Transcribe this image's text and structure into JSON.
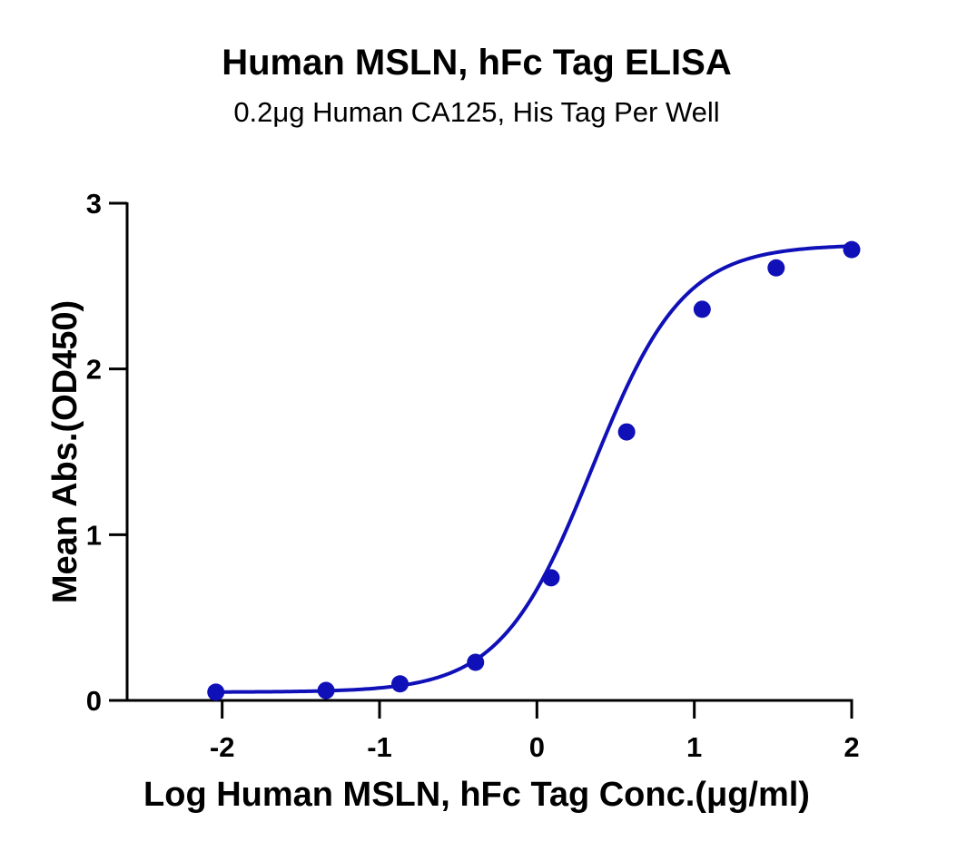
{
  "chart_data": {
    "type": "scatter",
    "title": "Human MSLN, hFc Tag ELISA",
    "subtitle": "0.2μg Human CA125, His Tag Per Well",
    "xlabel": "Log Human MSLN, hFc Tag Conc.(μg/ml)",
    "ylabel": "Mean Abs.(OD450)",
    "xlim": [
      -2.5,
      2
    ],
    "ylim": [
      0,
      3
    ],
    "x_ticks": [
      -2,
      -1,
      0,
      1,
      2
    ],
    "x_tick_labels": [
      "-2",
      "-1",
      "0",
      "1",
      "2"
    ],
    "y_ticks": [
      0,
      1,
      2,
      3
    ],
    "y_tick_labels": [
      "0",
      "1",
      "2",
      "3"
    ],
    "series": [
      {
        "name": "Human MSLN, hFc Tag",
        "color": "#1010B8",
        "x": [
          -2.04,
          -1.34,
          -0.87,
          -0.39,
          0.09,
          0.57,
          1.05,
          1.52,
          2.0
        ],
        "y": [
          0.05,
          0.06,
          0.1,
          0.23,
          0.74,
          1.62,
          2.36,
          2.61,
          2.72
        ]
      }
    ],
    "fit": {
      "model": "4PL",
      "bottom": 0.05,
      "top": 2.75,
      "logEC50": 0.35,
      "hill": 1.5,
      "color": "#1010B8"
    },
    "grid": false,
    "legend": "none"
  }
}
